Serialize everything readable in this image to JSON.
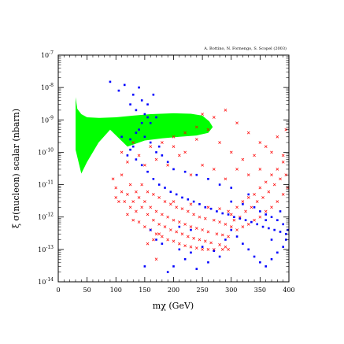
{
  "chart_data": {
    "type": "scatter",
    "title": "",
    "credit": "A. Bottino, N. Fornengo, S. Scopel (2003)",
    "xlabel": "mχ (GeV)",
    "ylabel": "ξ σ(nucleon) scalar (nbarn)",
    "xlim": [
      0,
      400
    ],
    "ylim": [
      1e-14,
      1e-07
    ],
    "y_scale": "log",
    "x_ticks": [
      0,
      50,
      100,
      150,
      200,
      250,
      300,
      350,
      400
    ],
    "x_tick_labels": [
      "0",
      "50",
      "100",
      "150",
      "200",
      "250",
      "300",
      "350",
      "400"
    ],
    "y_ticks": [
      1e-14,
      1e-13,
      1e-12,
      1e-11,
      1e-10,
      1e-09,
      1e-08,
      1e-07
    ],
    "y_tick_labels": [
      {
        "base": "10",
        "exp": "-14"
      },
      {
        "base": "10",
        "exp": "-13"
      },
      {
        "base": "10",
        "exp": "-12"
      },
      {
        "base": "10",
        "exp": "-11"
      },
      {
        "base": "10",
        "exp": "-10"
      },
      {
        "base": "10",
        "exp": "-9"
      },
      {
        "base": "10",
        "exp": "-8"
      },
      {
        "base": "10",
        "exp": "-7"
      }
    ],
    "region": {
      "color": "#00ff00",
      "boundary": [
        [
          30,
          5e-09
        ],
        [
          33,
          2.2e-09
        ],
        [
          40,
          1.5e-09
        ],
        [
          50,
          1.2e-09
        ],
        [
          70,
          1.15e-09
        ],
        [
          100,
          1.2e-09
        ],
        [
          130,
          1.35e-09
        ],
        [
          160,
          1.5e-09
        ],
        [
          200,
          1.6e-09
        ],
        [
          230,
          1.55e-09
        ],
        [
          250,
          1.35e-09
        ],
        [
          262,
          9e-10
        ],
        [
          268,
          6e-10
        ],
        [
          260,
          4e-10
        ],
        [
          240,
          3.3e-10
        ],
        [
          210,
          3e-10
        ],
        [
          180,
          2.7e-10
        ],
        [
          150,
          2.3e-10
        ],
        [
          120,
          1.5e-10
        ],
        [
          90,
          5e-10
        ],
        [
          70,
          2e-10
        ],
        [
          50,
          5e-11
        ],
        [
          40,
          2.2e-11
        ],
        [
          30,
          1.2e-10
        ]
      ]
    },
    "series": [
      {
        "marker": "x",
        "color": "#ff0000",
        "points": [
          [
            95,
            1.5e-11
          ],
          [
            100,
            8e-12
          ],
          [
            100,
            4e-12
          ],
          [
            105,
            3e-12
          ],
          [
            110,
            6e-12
          ],
          [
            110,
            2e-11
          ],
          [
            115,
            3e-12
          ],
          [
            120,
            1.2e-12
          ],
          [
            120,
            5e-12
          ],
          [
            125,
            2e-12
          ],
          [
            125,
            1e-11
          ],
          [
            130,
            8e-13
          ],
          [
            130,
            3e-12
          ],
          [
            135,
            6e-12
          ],
          [
            135,
            1.5e-12
          ],
          [
            140,
            4e-12
          ],
          [
            140,
            7e-13
          ],
          [
            145,
            2e-12
          ],
          [
            145,
            1e-11
          ],
          [
            150,
            5e-13
          ],
          [
            150,
            3e-12
          ],
          [
            155,
            1.2e-12
          ],
          [
            155,
            6e-12
          ],
          [
            160,
            4e-13
          ],
          [
            160,
            2e-12
          ],
          [
            165,
            8e-13
          ],
          [
            165,
            5e-12
          ],
          [
            170,
            3e-13
          ],
          [
            170,
            1.5e-12
          ],
          [
            175,
            6e-13
          ],
          [
            175,
            4e-12
          ],
          [
            180,
            2.5e-13
          ],
          [
            180,
            1.2e-12
          ],
          [
            185,
            5e-13
          ],
          [
            185,
            3e-12
          ],
          [
            190,
            2e-13
          ],
          [
            190,
            1e-12
          ],
          [
            195,
            4e-13
          ],
          [
            195,
            2.5e-12
          ],
          [
            200,
            1.8e-13
          ],
          [
            200,
            8e-13
          ],
          [
            205,
            3.5e-13
          ],
          [
            205,
            2e-12
          ],
          [
            210,
            1.5e-13
          ],
          [
            210,
            7e-13
          ],
          [
            215,
            3e-13
          ],
          [
            215,
            1.8e-12
          ],
          [
            220,
            1.3e-13
          ],
          [
            220,
            6e-13
          ],
          [
            225,
            2.5e-13
          ],
          [
            225,
            1.5e-12
          ],
          [
            230,
            1.2e-13
          ],
          [
            230,
            5e-13
          ],
          [
            235,
            2.2e-13
          ],
          [
            235,
            1.2e-12
          ],
          [
            240,
            1.1e-13
          ],
          [
            240,
            4.5e-13
          ],
          [
            245,
            2e-13
          ],
          [
            245,
            1e-12
          ],
          [
            250,
            1e-13
          ],
          [
            250,
            4e-13
          ],
          [
            255,
            1.8e-13
          ],
          [
            255,
            9e-13
          ],
          [
            260,
            1e-13
          ],
          [
            260,
            3.5e-13
          ],
          [
            265,
            1.6e-13
          ],
          [
            270,
            8e-13
          ],
          [
            270,
            1e-13
          ],
          [
            275,
            3e-13
          ],
          [
            280,
            1.4e-13
          ],
          [
            280,
            7e-13
          ],
          [
            285,
            1e-13
          ],
          [
            285,
            2.8e-13
          ],
          [
            290,
            1.2e-13
          ],
          [
            290,
            6e-13
          ],
          [
            295,
            1e-13
          ],
          [
            295,
            2.5e-13
          ],
          [
            300,
            5e-13
          ],
          [
            300,
            1.2e-12
          ],
          [
            305,
            8e-13
          ],
          [
            310,
            4e-13
          ],
          [
            310,
            2e-12
          ],
          [
            315,
            1e-12
          ],
          [
            320,
            5e-13
          ],
          [
            320,
            3e-12
          ],
          [
            325,
            1.5e-12
          ],
          [
            330,
            6e-13
          ],
          [
            330,
            4e-12
          ],
          [
            335,
            2e-12
          ],
          [
            340,
            8e-13
          ],
          [
            340,
            5e-12
          ],
          [
            345,
            3e-12
          ],
          [
            350,
            1e-12
          ],
          [
            350,
            8e-12
          ],
          [
            355,
            4e-12
          ],
          [
            360,
            1.5e-12
          ],
          [
            360,
            1.2e-11
          ],
          [
            365,
            6e-12
          ],
          [
            370,
            2e-12
          ],
          [
            370,
            2e-11
          ],
          [
            375,
            1e-11
          ],
          [
            380,
            3e-12
          ],
          [
            380,
            3e-11
          ],
          [
            385,
            1.5e-11
          ],
          [
            390,
            5e-12
          ],
          [
            390,
            5e-11
          ],
          [
            395,
            2e-11
          ],
          [
            398,
            8e-12
          ],
          [
            120,
            5e-11
          ],
          [
            140,
            8e-11
          ],
          [
            160,
            1.5e-10
          ],
          [
            180,
            2e-10
          ],
          [
            200,
            3e-10
          ],
          [
            220,
            4e-10
          ],
          [
            240,
            6e-10
          ],
          [
            260,
            5e-10
          ],
          [
            280,
            2e-10
          ],
          [
            300,
            1e-10
          ],
          [
            320,
            6e-11
          ],
          [
            340,
            8e-11
          ],
          [
            360,
            1.5e-10
          ],
          [
            380,
            3e-10
          ],
          [
            395,
            5e-10
          ],
          [
            250,
            1.5e-09
          ],
          [
            270,
            1.2e-09
          ],
          [
            290,
            2e-09
          ],
          [
            310,
            8e-10
          ],
          [
            330,
            4e-10
          ],
          [
            350,
            2e-10
          ],
          [
            370,
            1e-10
          ],
          [
            390,
            8e-11
          ],
          [
            200,
            1.5e-10
          ],
          [
            220,
            1e-10
          ],
          [
            240,
            2.5e-10
          ],
          [
            110,
            1e-10
          ],
          [
            130,
            2e-10
          ],
          [
            150,
            4e-11
          ],
          [
            170,
            6e-11
          ],
          [
            190,
            4e-11
          ],
          [
            210,
            8e-11
          ],
          [
            230,
            2e-11
          ],
          [
            250,
            4e-11
          ],
          [
            270,
            3e-11
          ],
          [
            290,
            1.5e-11
          ],
          [
            310,
            3e-11
          ],
          [
            330,
            2e-11
          ],
          [
            350,
            3e-11
          ],
          [
            200,
            3e-12
          ],
          [
            230,
            2.5e-12
          ],
          [
            260,
            2e-12
          ],
          [
            280,
            1.8e-12
          ],
          [
            295,
            1.5e-12
          ],
          [
            170,
            5e-14
          ],
          [
            175,
            3e-13
          ],
          [
            165,
            2e-13
          ],
          [
            155,
            1.5e-13
          ]
        ]
      },
      {
        "marker": "square",
        "color": "#0000ff",
        "points": [
          [
            90,
            1.5e-08
          ],
          [
            105,
            8e-09
          ],
          [
            115,
            1.2e-08
          ],
          [
            125,
            3e-09
          ],
          [
            130,
            6e-09
          ],
          [
            135,
            2e-09
          ],
          [
            140,
            1e-08
          ],
          [
            145,
            4e-09
          ],
          [
            150,
            1.5e-09
          ],
          [
            155,
            3e-09
          ],
          [
            160,
            8e-10
          ],
          [
            165,
            6e-09
          ],
          [
            170,
            1.2e-09
          ],
          [
            140,
            5e-10
          ],
          [
            150,
            3e-10
          ],
          [
            160,
            2e-10
          ],
          [
            170,
            1e-10
          ],
          [
            130,
            1.5e-10
          ],
          [
            120,
            8e-11
          ],
          [
            135,
            6e-11
          ],
          [
            145,
            4e-11
          ],
          [
            155,
            2.5e-11
          ],
          [
            165,
            1.5e-11
          ],
          [
            175,
            1e-11
          ],
          [
            185,
            8e-12
          ],
          [
            195,
            6e-12
          ],
          [
            205,
            5e-12
          ],
          [
            215,
            4e-12
          ],
          [
            225,
            3.5e-12
          ],
          [
            235,
            3e-12
          ],
          [
            245,
            2.5e-12
          ],
          [
            255,
            2e-12
          ],
          [
            265,
            1.8e-12
          ],
          [
            275,
            1.5e-12
          ],
          [
            285,
            1.3e-12
          ],
          [
            295,
            1.2e-12
          ],
          [
            305,
            1e-12
          ],
          [
            315,
            9e-13
          ],
          [
            325,
            8e-13
          ],
          [
            335,
            7e-13
          ],
          [
            345,
            6e-13
          ],
          [
            355,
            5e-13
          ],
          [
            365,
            4.5e-13
          ],
          [
            375,
            4e-13
          ],
          [
            385,
            3.5e-13
          ],
          [
            395,
            3e-13
          ],
          [
            300,
            4e-13
          ],
          [
            310,
            2.5e-13
          ],
          [
            320,
            1.5e-13
          ],
          [
            330,
            1e-13
          ],
          [
            340,
            6e-14
          ],
          [
            350,
            4e-14
          ],
          [
            360,
            3e-14
          ],
          [
            370,
            5e-14
          ],
          [
            380,
            8e-14
          ],
          [
            390,
            1.2e-13
          ],
          [
            395,
            2e-13
          ],
          [
            200,
            3e-14
          ],
          [
            220,
            5e-14
          ],
          [
            240,
            2.5e-14
          ],
          [
            260,
            4e-14
          ],
          [
            280,
            6e-14
          ],
          [
            180,
            1.5e-13
          ],
          [
            190,
            2e-14
          ],
          [
            210,
            1e-13
          ],
          [
            230,
            8e-14
          ],
          [
            250,
            1.2e-13
          ],
          [
            270,
            9e-14
          ],
          [
            290,
            2e-13
          ],
          [
            170,
            2e-13
          ],
          [
            160,
            4e-13
          ],
          [
            150,
            3e-14
          ],
          [
            340,
            2e-12
          ],
          [
            350,
            1.5e-12
          ],
          [
            360,
            1.2e-12
          ],
          [
            370,
            1e-12
          ],
          [
            380,
            8e-13
          ],
          [
            390,
            6e-13
          ],
          [
            330,
            5e-12
          ],
          [
            300,
            8e-12
          ],
          [
            280,
            1e-11
          ],
          [
            260,
            1.5e-11
          ],
          [
            240,
            2e-11
          ],
          [
            220,
            2.5e-11
          ],
          [
            200,
            3e-11
          ],
          [
            190,
            5e-11
          ],
          [
            180,
            8e-11
          ],
          [
            175,
            1.5e-10
          ],
          [
            125,
            2.5e-10
          ],
          [
            135,
            4e-10
          ],
          [
            145,
            8e-10
          ],
          [
            155,
            1.2e-09
          ],
          [
            125,
            1.2e-10
          ],
          [
            110,
            3e-10
          ],
          [
            300,
            3e-12
          ],
          [
            320,
            2.5e-12
          ],
          [
            360,
            8e-13
          ],
          [
            370,
            2e-13
          ],
          [
            385,
            1.5e-12
          ],
          [
            398,
            4e-13
          ],
          [
            210,
            5e-13
          ],
          [
            230,
            4e-13
          ]
        ]
      }
    ]
  }
}
